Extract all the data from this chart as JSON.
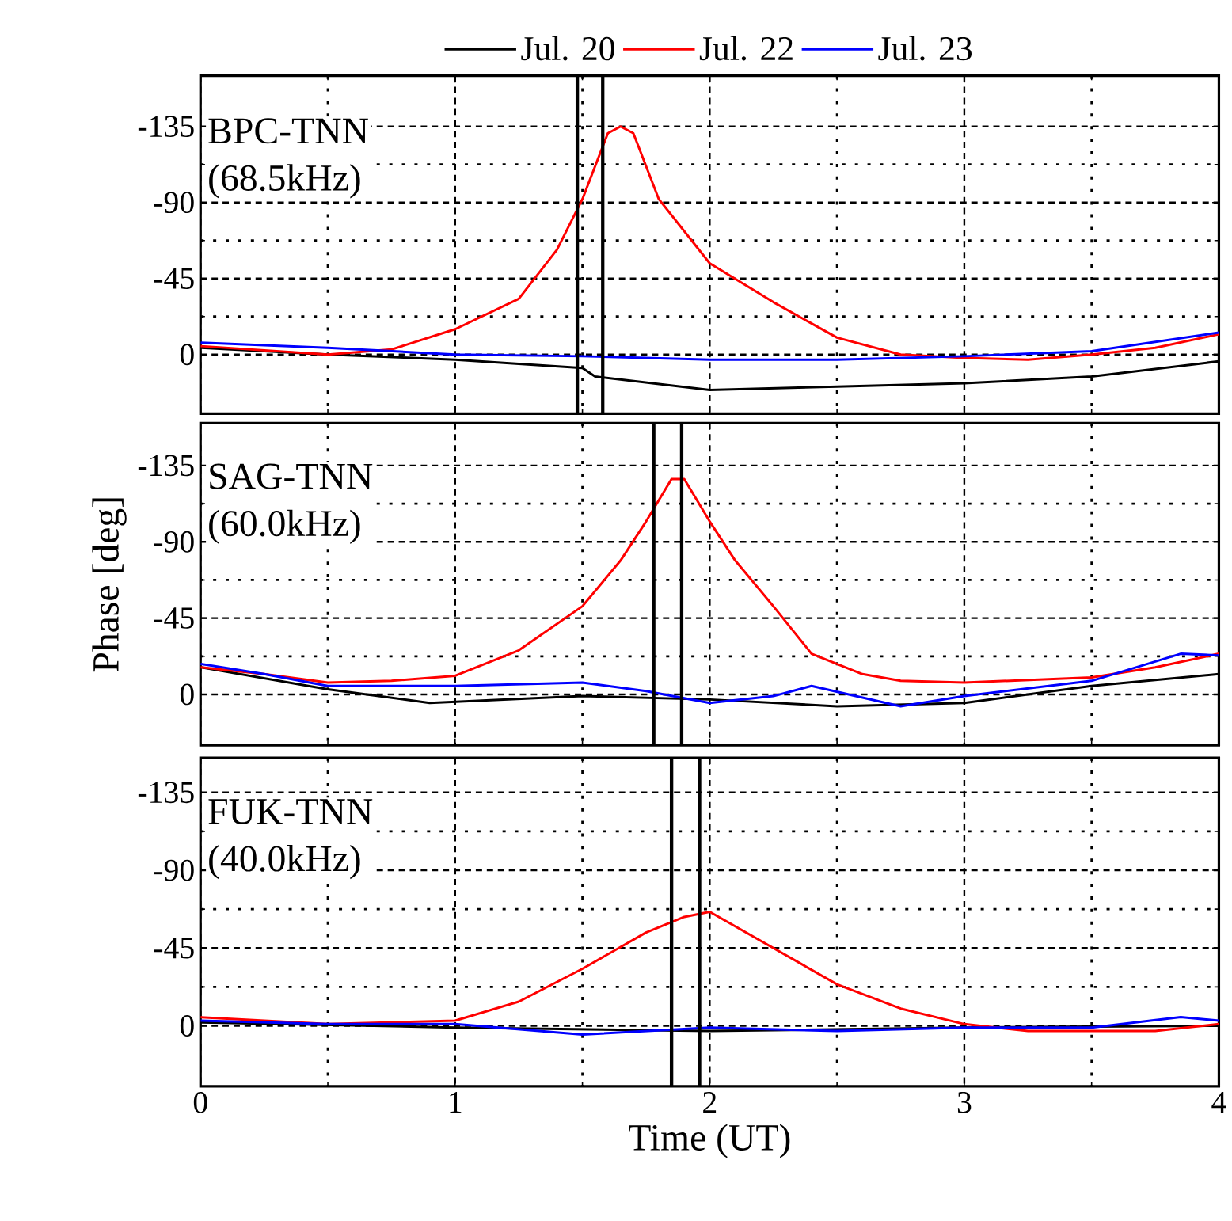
{
  "chart_data": [
    {
      "type": "line",
      "annotations": [
        "BPC-TNN",
        "(68.5kHz)"
      ],
      "legend": "top",
      "grid": true,
      "tick_labels": "y",
      "x": [
        0,
        0.5,
        0.75,
        1,
        1.25,
        1.4,
        1.5,
        1.6,
        1.65,
        1.7,
        1.8,
        2,
        2.25,
        2.5,
        2.75,
        3,
        3.25,
        3.5,
        3.75,
        4
      ],
      "series": [
        {
          "name": "Jul. 20",
          "color": "#000000",
          "x": [
            0,
            0.5,
            1,
            1.5,
            1.55,
            2,
            2.5,
            3,
            3.5,
            4
          ],
          "values": [
            -4,
            0,
            3,
            8,
            13,
            21,
            19,
            17,
            13,
            4
          ]
        },
        {
          "name": "Jul. 22",
          "color": "#ff0000",
          "values": [
            -5,
            0,
            -3,
            -15,
            -33,
            -62,
            -92,
            -131,
            -135,
            -131,
            -92,
            -54,
            -31,
            -10,
            0,
            2,
            3,
            0,
            -4,
            -12
          ]
        },
        {
          "name": "Jul. 23",
          "color": "#0000ff",
          "x": [
            0,
            0.5,
            1,
            1.5,
            2,
            2.5,
            3,
            3.5,
            4
          ],
          "values": [
            -7,
            -4,
            0,
            1,
            3,
            3,
            1,
            -2,
            -13
          ]
        }
      ],
      "xlim": [
        0,
        4
      ],
      "xticks": [
        0,
        1,
        2,
        3,
        4
      ],
      "ylim": [
        35,
        -165
      ],
      "yticks": [
        -135,
        -90,
        -45,
        0
      ],
      "ref_lines": [
        {
          "axis": "x",
          "value": 1.48,
          "color": "#000000"
        },
        {
          "axis": "x",
          "value": 1.58,
          "color": "#000000"
        }
      ]
    },
    {
      "type": "line",
      "annotations": [
        "SAG-TNN",
        "(60.0kHz)"
      ],
      "grid": true,
      "tick_labels": "y",
      "ylabel": "Phase [deg]",
      "x": [
        0,
        0.25,
        0.5,
        0.75,
        1,
        1.25,
        1.5,
        1.65,
        1.75,
        1.85,
        1.9,
        2,
        2.1,
        2.25,
        2.4,
        2.6,
        2.75,
        3,
        3.5,
        3.75,
        4
      ],
      "series": [
        {
          "color": "#000000",
          "x": [
            0,
            0.5,
            0.9,
            1.5,
            2,
            2.5,
            3,
            3.5,
            4
          ],
          "values": [
            -16,
            -3,
            5,
            1,
            3,
            7,
            5,
            -5,
            -12
          ]
        },
        {
          "color": "#ff0000",
          "values": [
            -16,
            -12,
            -7,
            -8,
            -11,
            -26,
            -52,
            -79,
            -102,
            -127,
            -127,
            -102,
            -79,
            -52,
            -24,
            -12,
            -8,
            -7,
            -10,
            -16,
            -24
          ]
        },
        {
          "color": "#0000ff",
          "x": [
            0,
            0.25,
            0.5,
            1,
            1.5,
            1.75,
            2,
            2.25,
            2.4,
            2.75,
            3,
            3.5,
            3.85,
            4
          ],
          "values": [
            -18,
            -12,
            -5,
            -5,
            -7,
            -2,
            5,
            1,
            -5,
            7,
            1,
            -8,
            -24,
            -23
          ]
        }
      ],
      "xlim": [
        0,
        4
      ],
      "xticks": [
        0,
        1,
        2,
        3,
        4
      ],
      "ylim": [
        30,
        -160
      ],
      "yticks": [
        -135,
        -90,
        -45,
        0
      ],
      "ref_lines": [
        {
          "axis": "x",
          "value": 1.78,
          "color": "#000000"
        },
        {
          "axis": "x",
          "value": 1.89,
          "color": "#000000"
        }
      ]
    },
    {
      "type": "line",
      "annotations": [
        "FUK-TNN",
        "(40.0kHz)"
      ],
      "grid": true,
      "xlabel": "Time (UT)",
      "x": [
        0,
        0.5,
        1,
        1.25,
        1.5,
        1.75,
        1.9,
        2,
        2.25,
        2.5,
        2.75,
        3,
        3.25,
        3.5,
        3.75,
        4
      ],
      "series": [
        {
          "color": "#000000",
          "x": [
            0,
            1,
            2,
            3,
            4
          ],
          "values": [
            -2,
            1,
            3,
            1,
            0
          ]
        },
        {
          "color": "#ff0000",
          "values": [
            -5,
            -1,
            -3,
            -14,
            -33,
            -54,
            -63,
            -66,
            -45,
            -24,
            -10,
            -1,
            3,
            3,
            3,
            -1
          ]
        },
        {
          "color": "#0000ff",
          "x": [
            0,
            0.5,
            1,
            1.5,
            2,
            2.5,
            3,
            3.5,
            3.85,
            4
          ],
          "values": [
            -3,
            -1,
            -1,
            5,
            1,
            3,
            1,
            1,
            -5,
            -3
          ]
        }
      ],
      "xlim": [
        0,
        4
      ],
      "xticks": [
        0,
        1,
        2,
        3,
        4
      ],
      "ylim": [
        35,
        -155
      ],
      "yticks": [
        -135,
        -90,
        -45,
        0
      ],
      "ref_lines": [
        {
          "axis": "x",
          "value": 1.85,
          "color": "#000000"
        },
        {
          "axis": "x",
          "value": 1.96,
          "color": "#000000"
        }
      ]
    }
  ]
}
